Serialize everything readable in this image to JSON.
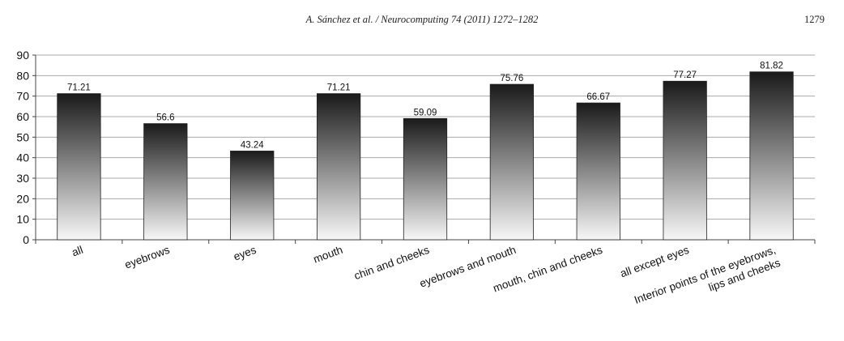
{
  "header": {
    "running_head": "A. Sánchez et al. / Neurocomputing 74 (2011) 1272–1282",
    "page_number": "1279"
  },
  "chart_data": {
    "type": "bar",
    "categories": [
      "all",
      "eyebrows",
      "eyes",
      "mouth",
      "chin and cheeks",
      "eyebrows and mouth",
      "mouth, chin and cheeks",
      "all except eyes",
      "Interior points of the eyebrows, lips and cheeks"
    ],
    "category_label_lines": [
      [
        "all"
      ],
      [
        "eyebrows"
      ],
      [
        "eyes"
      ],
      [
        "mouth"
      ],
      [
        "chin and cheeks"
      ],
      [
        "eyebrows and mouth"
      ],
      [
        "mouth, chin and cheeks"
      ],
      [
        "all except eyes"
      ],
      [
        "Interior points of the eyebrows,",
        "lips and cheeks"
      ]
    ],
    "values": [
      71.21,
      56.6,
      43.24,
      71.21,
      59.09,
      75.76,
      66.67,
      77.27,
      81.82
    ],
    "data_labels": [
      "71.21",
      "56.6",
      "43.24",
      "71.21",
      "59.09",
      "75.76",
      "66.67",
      "77.27",
      "81.82"
    ],
    "yticks": [
      0,
      10,
      20,
      30,
      40,
      50,
      60,
      70,
      80,
      90
    ],
    "ylim": [
      0,
      90
    ],
    "grid": true,
    "bar_gradient": [
      "#1a1a1a",
      "#f7f7f7"
    ],
    "title": "",
    "xlabel": "",
    "ylabel": ""
  }
}
